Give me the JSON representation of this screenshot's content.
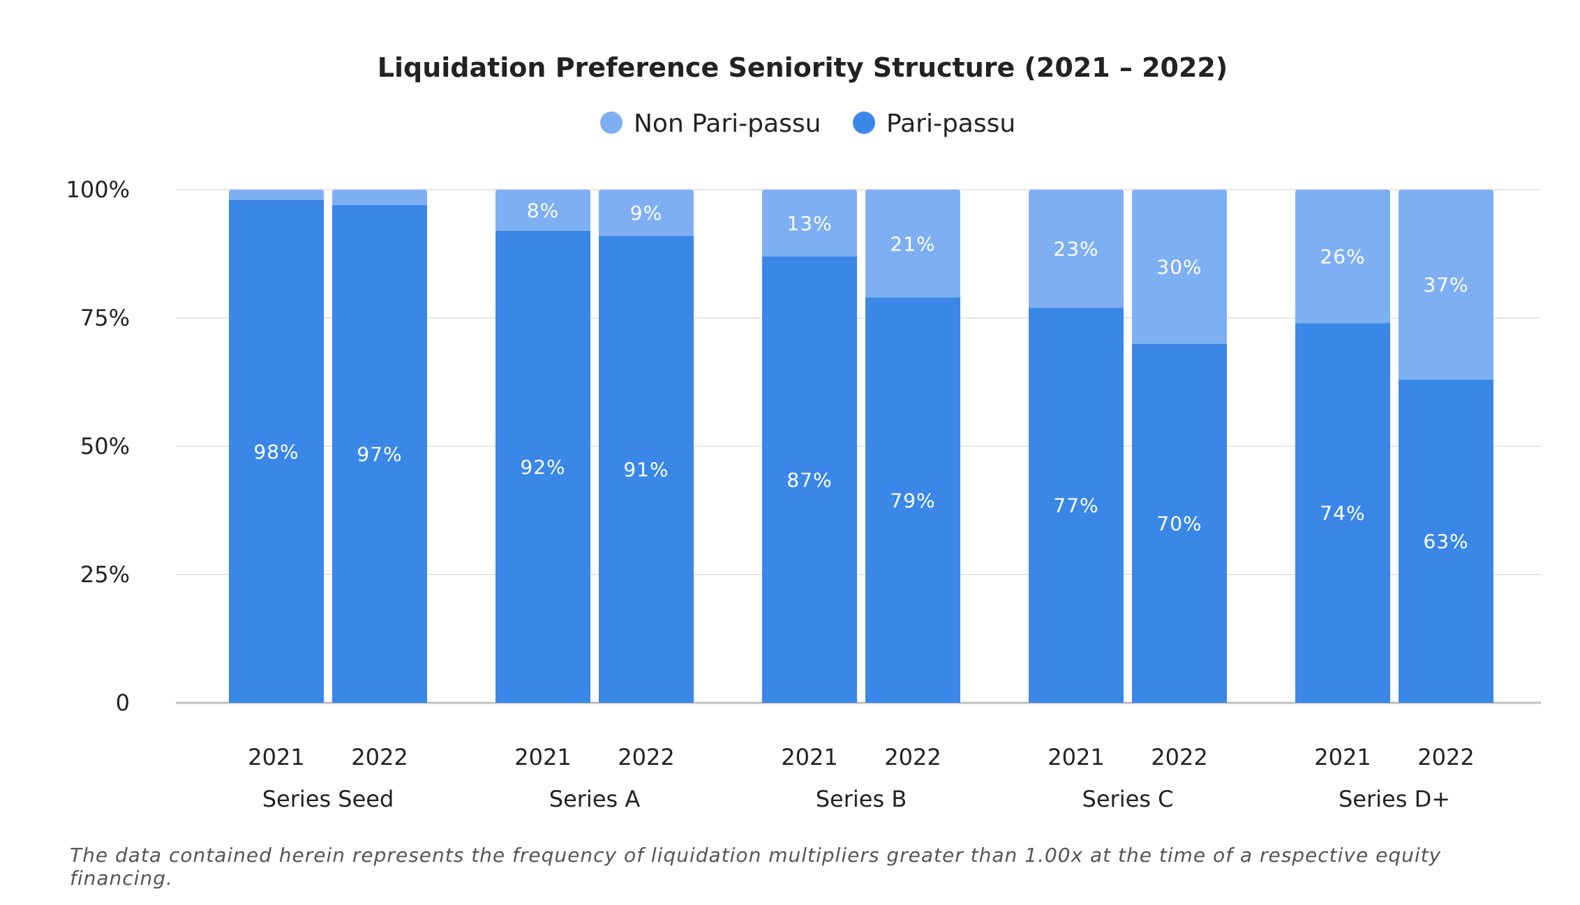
{
  "chart_data": {
    "type": "bar",
    "stacked": true,
    "title": "Liquidation Preference Seniority Structure (2021 – 2022)",
    "groups": [
      "Series Seed",
      "Series A",
      "Series B",
      "Series C",
      "Series D+"
    ],
    "years": [
      "2021",
      "2022"
    ],
    "series": [
      {
        "name": "Pari-passu",
        "color": "#3a87e8",
        "values": [
          98,
          97,
          92,
          91,
          87,
          79,
          77,
          70,
          74,
          63
        ],
        "labels": [
          "98%",
          "97%",
          "92%",
          "91%",
          "87%",
          "79%",
          "77%",
          "70%",
          "74%",
          "63%"
        ]
      },
      {
        "name": "Non Pari-passu",
        "color": "#7eaff2",
        "values": [
          2,
          3,
          8,
          9,
          13,
          21,
          23,
          30,
          26,
          37
        ],
        "labels": [
          "",
          "",
          "8%",
          "9%",
          "13%",
          "21%",
          "23%",
          "30%",
          "26%",
          "37%"
        ]
      }
    ],
    "legend_order": [
      "Non Pari-passu",
      "Pari-passu"
    ],
    "y_ticks": [
      "0",
      "25%",
      "50%",
      "75%",
      "100%"
    ],
    "ylim": [
      0,
      100
    ],
    "grid": true,
    "legend_position": "top-center"
  },
  "footnote": "The data contained herein represents the frequency of liquidation multipliers greater than 1.00x at the time of a respective equity financing."
}
